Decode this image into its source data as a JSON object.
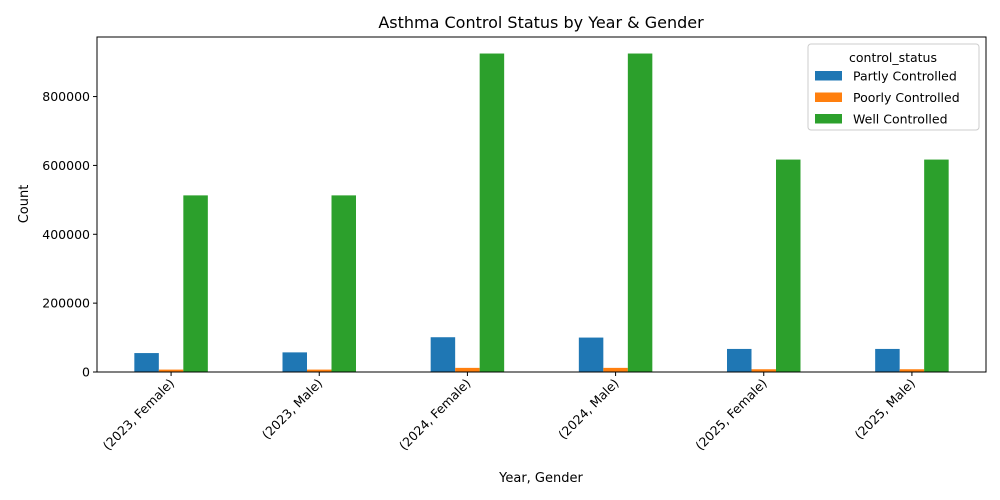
{
  "chart_data": {
    "type": "bar",
    "title": "Asthma Control Status by Year & Gender",
    "xlabel": "Year, Gender",
    "ylabel": "Count",
    "categories": [
      "(2023, Female)",
      "(2023, Male)",
      "(2024, Female)",
      "(2024, Male)",
      "(2025, Female)",
      "(2025, Male)"
    ],
    "series": [
      {
        "name": "Partly Controlled",
        "color": "#1f77b4",
        "values": [
          55000,
          57000,
          101000,
          100000,
          67000,
          67000
        ]
      },
      {
        "name": "Poorly Controlled",
        "color": "#ff7f0e",
        "values": [
          7000,
          7000,
          12000,
          12000,
          8000,
          8000
        ]
      },
      {
        "name": "Well Controlled",
        "color": "#2ca02c",
        "values": [
          513000,
          513000,
          925000,
          925000,
          617000,
          617000
        ]
      }
    ],
    "ylim": [
      0,
      973000
    ],
    "yticks": [
      "0",
      "200000",
      "400000",
      "600000",
      "800000"
    ],
    "legend": {
      "title": "control_status",
      "placement": "top-right"
    },
    "grid": false
  }
}
